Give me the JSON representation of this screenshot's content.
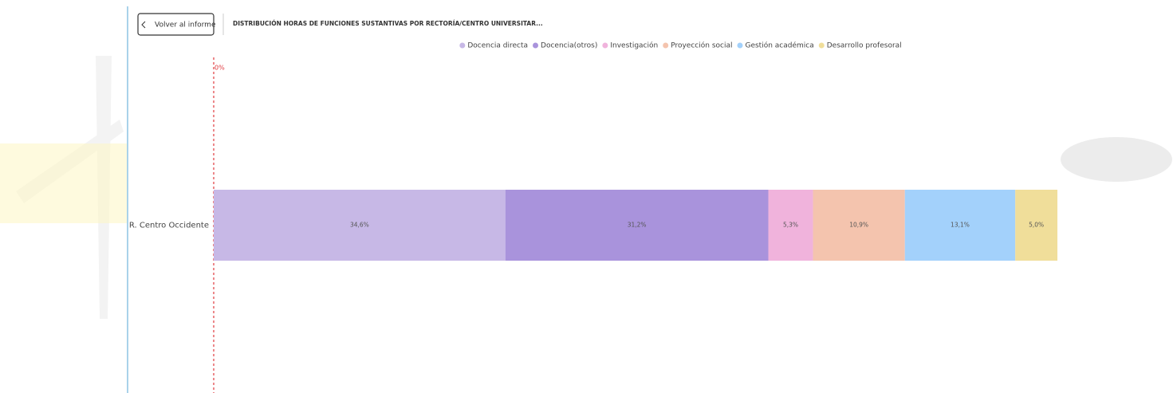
{
  "back_button": "Volver al informe",
  "chart_data": {
    "type": "stacked-bar-horizontal",
    "title": "DISTRIBUCIÓN HORAS DE FUNCIONES SUSTANTIVAS POR RECTORÍA/CENTRO UNIVERSITAR...",
    "categories": [
      "R. Centro Occidente"
    ],
    "xlim": [
      0,
      100
    ],
    "xticks": [
      {
        "value": 0,
        "label": "0%"
      }
    ],
    "series": [
      {
        "name": "Docencia directa",
        "color": "#c7b8e6",
        "values": [
          34.6
        ],
        "value_labels": [
          "34,6%"
        ]
      },
      {
        "name": "Docencia(otros)",
        "color": "#a993dc",
        "values": [
          31.2
        ],
        "value_labels": [
          "31,2%"
        ]
      },
      {
        "name": "Investigación",
        "color": "#f0b3dc",
        "values": [
          5.3
        ],
        "value_labels": [
          "5,3%"
        ]
      },
      {
        "name": "Proyección social",
        "color": "#f4c4ae",
        "values": [
          10.9
        ],
        "value_labels": [
          "10,9%"
        ]
      },
      {
        "name": "Gestión académica",
        "color": "#a3d1fb",
        "values": [
          13.1
        ],
        "value_labels": [
          "13,1%"
        ]
      },
      {
        "name": "Desarrollo profesoral",
        "color": "#f0de9a",
        "values": [
          5.0
        ],
        "value_labels": [
          "5,0%"
        ]
      }
    ]
  }
}
